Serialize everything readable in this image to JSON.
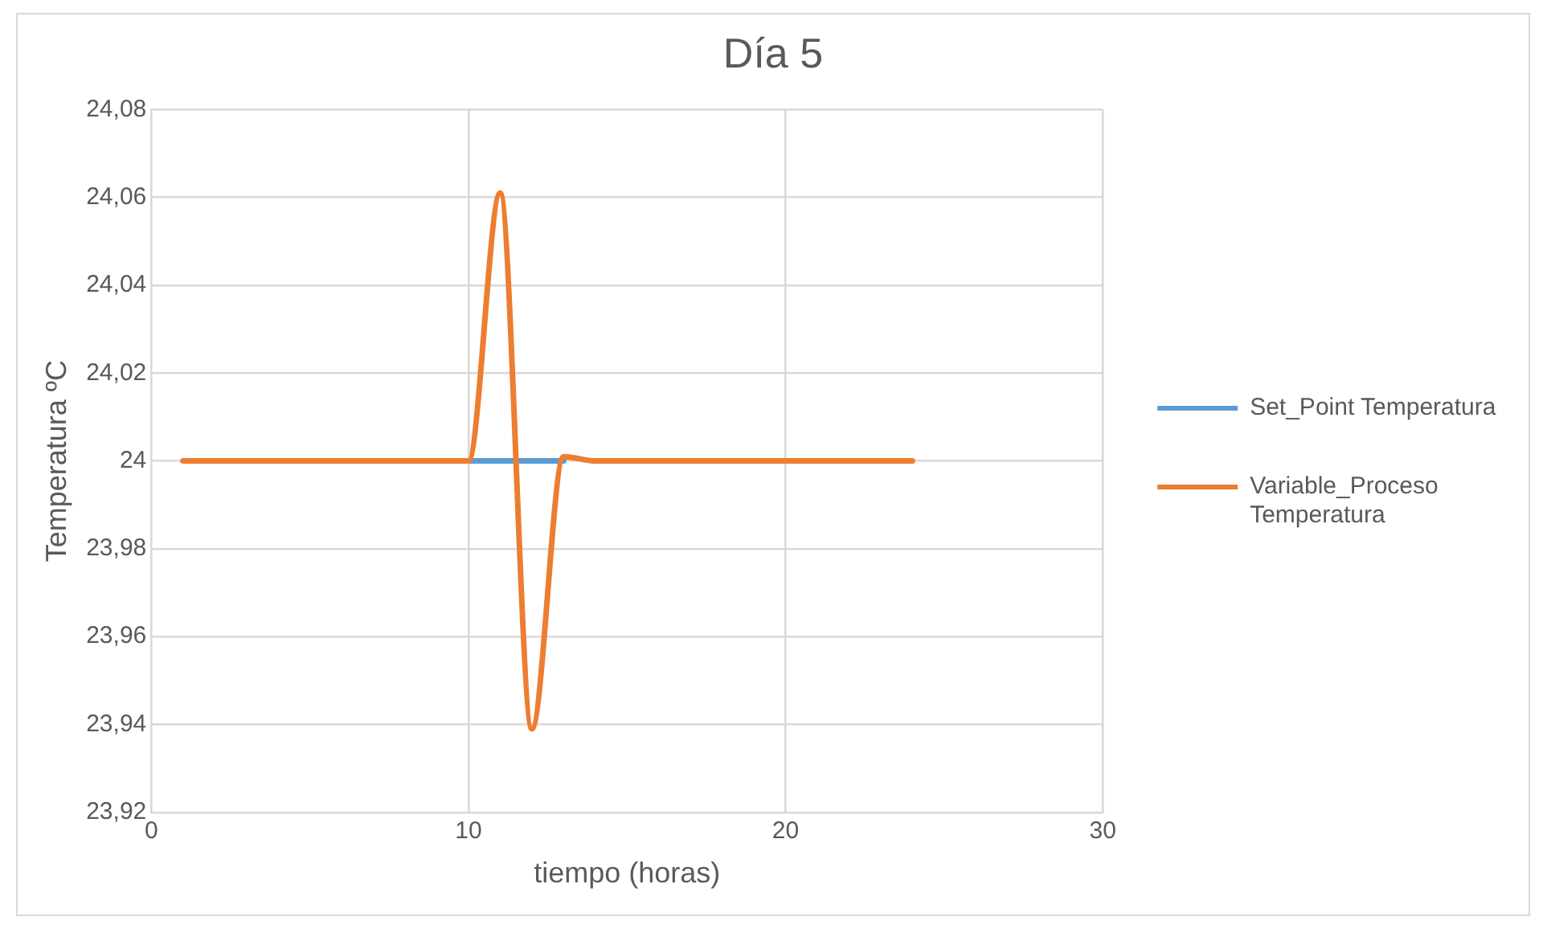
{
  "chart_data": {
    "type": "line",
    "title": "Día 5",
    "xlabel": "tiempo (horas)",
    "ylabel": "Temperatura ºC",
    "x": [
      1,
      2,
      3,
      4,
      5,
      6,
      7,
      8,
      9,
      10,
      11,
      12,
      13,
      14,
      15,
      16,
      17,
      18,
      19,
      20,
      21,
      22,
      23,
      24
    ],
    "series": [
      {
        "name": "Set_Point Temperatura",
        "color": "#5b9bd5",
        "values": [
          null,
          null,
          null,
          null,
          null,
          null,
          null,
          null,
          null,
          24,
          24,
          24,
          24,
          null,
          null,
          null,
          null,
          null,
          null,
          null,
          null,
          null,
          null,
          null
        ]
      },
      {
        "name": "Variable_Proceso Temperatura",
        "color": "#ed7d31",
        "values": [
          24,
          24,
          24,
          24,
          24,
          24,
          24,
          24,
          24,
          24,
          24.061,
          23.939,
          24.001,
          24,
          24,
          24,
          24,
          24,
          24,
          24,
          24,
          24,
          24,
          24
        ]
      }
    ],
    "xlim": [
      0,
      30
    ],
    "xticks": [
      0,
      10,
      20,
      30
    ],
    "ylim": [
      23.92,
      24.08
    ],
    "yticks": [
      {
        "value": 23.92,
        "label": "23,92"
      },
      {
        "value": 23.94,
        "label": "23,94"
      },
      {
        "value": 23.96,
        "label": "23,96"
      },
      {
        "value": 23.98,
        "label": "23,98"
      },
      {
        "value": 24,
        "label": "24"
      },
      {
        "value": 24.02,
        "label": "24,02"
      },
      {
        "value": 24.04,
        "label": "24,04"
      },
      {
        "value": 24.06,
        "label": "24,06"
      },
      {
        "value": 24.08,
        "label": "24,08"
      }
    ],
    "grid": true,
    "legend": "right",
    "marker": "none",
    "line_style": "solid"
  }
}
